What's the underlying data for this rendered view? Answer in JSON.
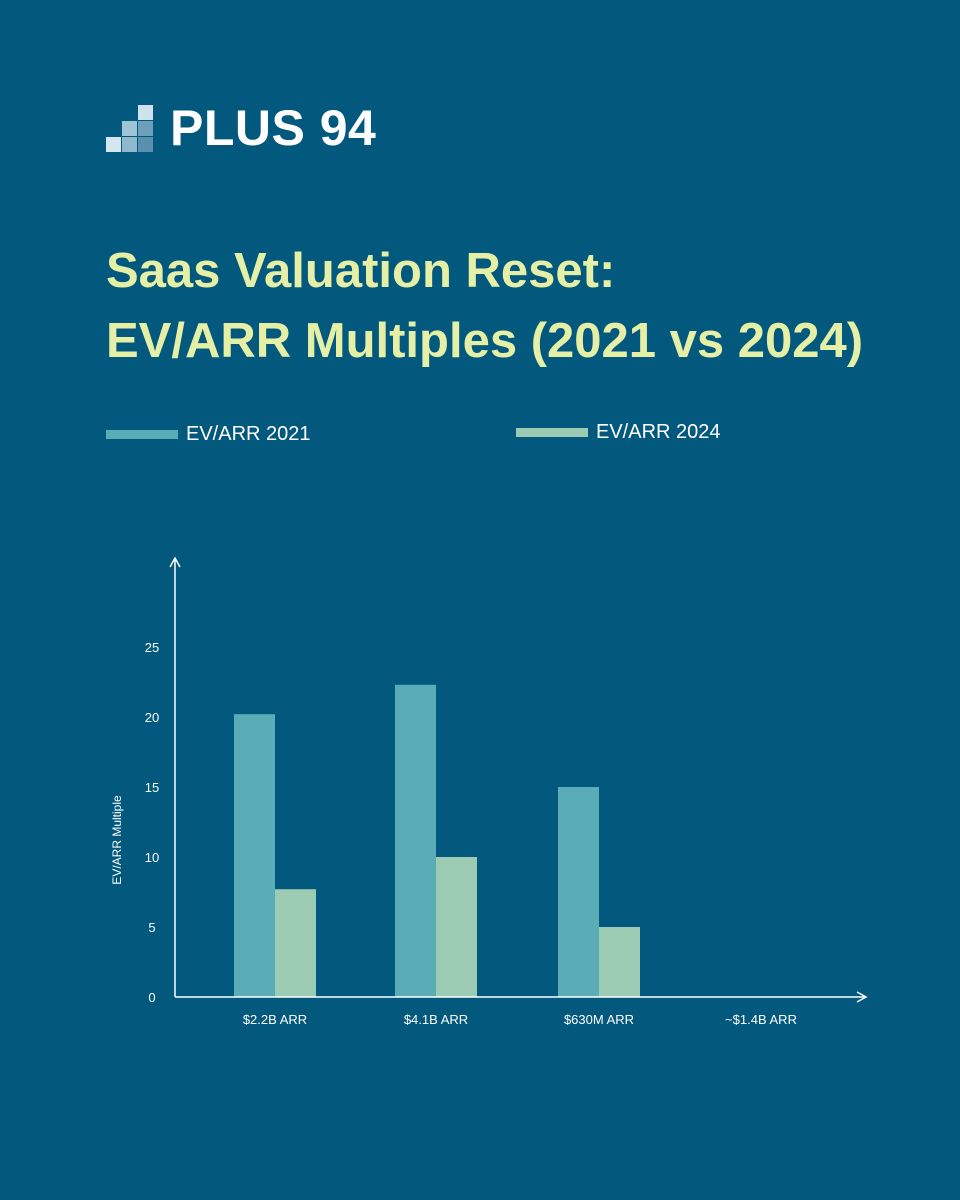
{
  "brand": {
    "name": "PLUS 94",
    "logo_icon": "stepped-squares-logo-icon"
  },
  "colors": {
    "background": "#02587d",
    "title": "#e6efa6",
    "series_2021": "#5aadb7",
    "series_2024": "#9ccbb3",
    "axis": "#ffffff"
  },
  "title_lines": [
    "Saas Valuation Reset:",
    "EV/ARR Multiples (2021 vs 2024)"
  ],
  "chart_data": {
    "type": "bar",
    "categories": [
      "$2.2B ARR",
      "$4.1B ARR",
      "$630M ARR",
      "~$1.4B ARR"
    ],
    "series": [
      {
        "name": "EV/ARR 2021",
        "values": [
          20.2,
          22.3,
          15.0,
          null
        ]
      },
      {
        "name": "EV/ARR 2024",
        "values": [
          7.7,
          10.0,
          5.0,
          null
        ]
      }
    ],
    "ylabel": "EV/ARR Multiple",
    "xlabel": "",
    "yticks": [
      0,
      5,
      10,
      15,
      20,
      25
    ],
    "ylim": [
      0,
      30
    ],
    "legend_position": "top",
    "grid": false
  }
}
